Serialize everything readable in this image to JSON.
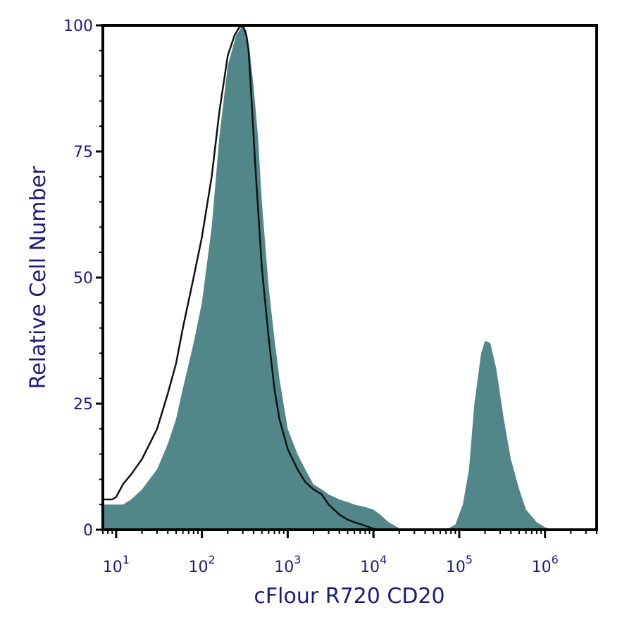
{
  "chart_data": {
    "type": "area",
    "title": "",
    "xlabel": "cFlour R720 CD20",
    "ylabel": "Relative Cell Number",
    "x_scale": "log10",
    "xlim": [
      7,
      4000000
    ],
    "ylim": [
      0,
      100
    ],
    "y_ticks": [
      {
        "value": 0,
        "label": "0"
      },
      {
        "value": 25,
        "label": "25"
      },
      {
        "value": 50,
        "label": "50"
      },
      {
        "value": 75,
        "label": "75"
      },
      {
        "value": 100,
        "label": "100"
      }
    ],
    "x_ticks": [
      {
        "value": 10,
        "base": "10",
        "exp": "1"
      },
      {
        "value": 100,
        "base": "10",
        "exp": "2"
      },
      {
        "value": 1000,
        "base": "10",
        "exp": "3"
      },
      {
        "value": 10000,
        "base": "10",
        "exp": "4"
      },
      {
        "value": 100000,
        "base": "10",
        "exp": "5"
      },
      {
        "value": 1000000,
        "base": "10",
        "exp": "6"
      }
    ],
    "grid": false,
    "series": [
      {
        "style": "filled",
        "color": "#52878a",
        "x": [
          7,
          10,
          12,
          15,
          20,
          30,
          40,
          50,
          60,
          80,
          100,
          130,
          160,
          200,
          250,
          300,
          330,
          360,
          400,
          450,
          500,
          600,
          700,
          800,
          1000,
          1300,
          1600,
          2000,
          2500,
          3000,
          3500,
          4000,
          5000,
          6000,
          8000,
          10000,
          12000,
          15000,
          20000,
          30000,
          50000,
          70000,
          90000,
          110000,
          130000,
          150000,
          180000,
          200000,
          230000,
          270000,
          330000,
          400000,
          500000,
          600000,
          800000,
          1000000,
          1200000,
          1500000,
          2000000,
          4000000
        ],
        "y": [
          5,
          5,
          5,
          6,
          8,
          12,
          17,
          22,
          28,
          37,
          45,
          60,
          78,
          92,
          98,
          100,
          99,
          95,
          88,
          78,
          65,
          48,
          38,
          30,
          20,
          15,
          12,
          9,
          8,
          7,
          6.5,
          6,
          5.5,
          5,
          4.5,
          4,
          3,
          1.5,
          0.3,
          0,
          0,
          0,
          1,
          5,
          12,
          25,
          35,
          37.5,
          37,
          32,
          22,
          14,
          8,
          4,
          1.5,
          0.5,
          0,
          0,
          0,
          0
        ]
      },
      {
        "style": "outline",
        "color": "#111111",
        "x": [
          7,
          9,
          10,
          12,
          15,
          20,
          30,
          40,
          50,
          60,
          80,
          100,
          130,
          160,
          200,
          240,
          270,
          300,
          330,
          350,
          380,
          420,
          500,
          600,
          700,
          800,
          1000,
          1300,
          1600,
          2000,
          2500,
          3000,
          4000,
          5000,
          6000,
          8000,
          10000,
          13000,
          20000,
          4000000
        ],
        "y": [
          6,
          6,
          6.5,
          9,
          11,
          14,
          20,
          27,
          33,
          40,
          50,
          58,
          70,
          83,
          94,
          98,
          99.5,
          100,
          98,
          95,
          85,
          72,
          52,
          38,
          28,
          22,
          16,
          12,
          9.5,
          8,
          7,
          5,
          3,
          2,
          1.5,
          0.8,
          0.2,
          0,
          0,
          0
        ]
      }
    ]
  }
}
